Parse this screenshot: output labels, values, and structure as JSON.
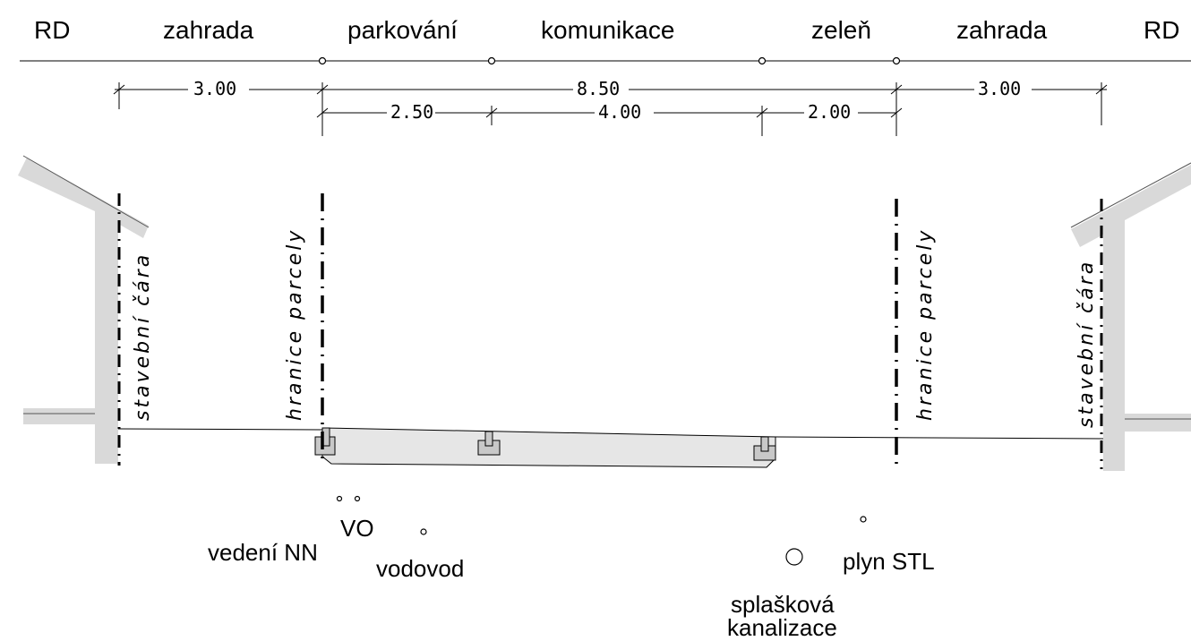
{
  "zones": {
    "rd_left": "RD",
    "zahrada_left": "zahrada",
    "parkovani": "parkování",
    "komunikace": "komunikace",
    "zelen": "zeleň",
    "zahrada_right": "zahrada",
    "rd_right": "RD"
  },
  "dimensions": {
    "left_garden": "3.00",
    "total": "8.50",
    "right_garden": "3.00",
    "parking": "2.50",
    "road": "4.00",
    "green": "2.00"
  },
  "vertical_labels": {
    "building_line_left": "stavební čára",
    "parcel_boundary_left": "hranice parcely",
    "parcel_boundary_right": "hranice parcely",
    "building_line_right": "stavební čára"
  },
  "utilities": {
    "vo": "VO",
    "nn": "vedení NN",
    "water": "vodovod",
    "gas": "plyn STL",
    "sewer_line1": "splašková",
    "sewer_line2": "kanalizace"
  }
}
